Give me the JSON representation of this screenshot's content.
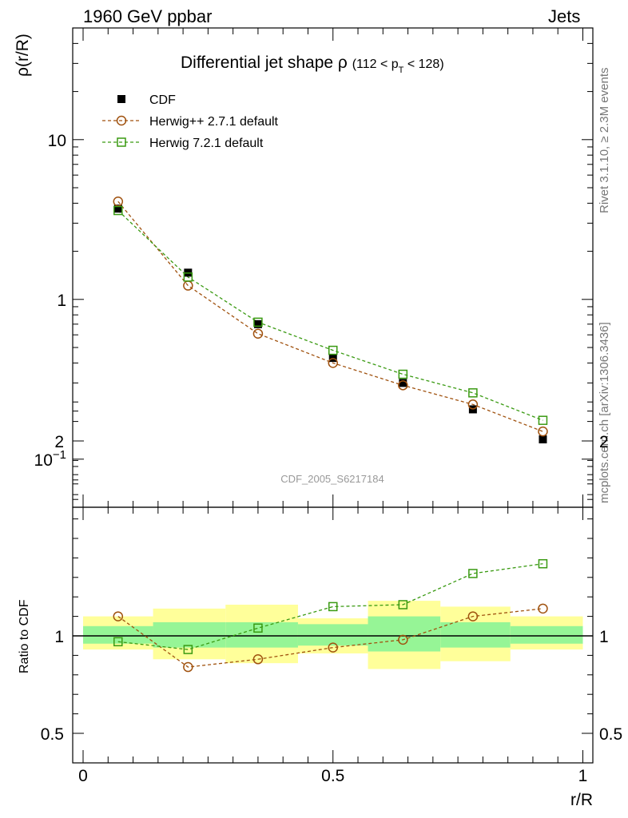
{
  "header": {
    "left": "1960 GeV ppbar",
    "right": "Jets"
  },
  "side_labels": {
    "top": "Rivet 3.1.10, ≥ 2.3M events",
    "bottom": "mcplots.cern.ch [arXiv:1306.3436]"
  },
  "chart_data": [
    {
      "type": "line",
      "panel": "main",
      "title_main": "Differential jet shape ρ",
      "title_sub": "(112 < p",
      "title_sub_index": "T",
      "title_sub_end": " < 128)",
      "ylabel": "ρ(r/R)",
      "xlabel": "",
      "y_scale": "log",
      "ylim": [
        0.05,
        50
      ],
      "xlim": [
        -0.02,
        1.0
      ],
      "ytick_labels": [
        "10^-1",
        "1",
        "10"
      ],
      "watermark": "CDF_2005_S6217184",
      "x": [
        0.07,
        0.21,
        0.35,
        0.5,
        0.64,
        0.78,
        0.92
      ],
      "series": [
        {
          "name": "CDF",
          "marker": "filled-square",
          "color": "#000000",
          "values": [
            3.7,
            1.47,
            0.7,
            0.43,
            0.3,
            0.205,
            0.133
          ]
        },
        {
          "name": "Herwig++ 2.7.1 default",
          "marker": "open-circle",
          "color": "#a0520f",
          "values": [
            4.1,
            1.22,
            0.61,
            0.4,
            0.29,
            0.22,
            0.149
          ]
        },
        {
          "name": "Herwig 7.2.1 default",
          "marker": "open-square",
          "color": "#3a9a12",
          "values": [
            3.6,
            1.38,
            0.72,
            0.48,
            0.34,
            0.26,
            0.175
          ]
        }
      ],
      "legend": "top-left"
    },
    {
      "type": "line",
      "panel": "ratio",
      "ylabel": "Ratio to CDF",
      "xlabel": "r/R",
      "ylim": [
        0.4,
        2.4
      ],
      "ytick_labels": [
        "0.5",
        "1",
        "2"
      ],
      "xtick_labels": [
        "0",
        "0.5",
        "1"
      ],
      "x": [
        0.07,
        0.21,
        0.35,
        0.5,
        0.64,
        0.78,
        0.92
      ],
      "bins": [
        0.0,
        0.14,
        0.285,
        0.43,
        0.57,
        0.715,
        0.855,
        1.0
      ],
      "band_yellow": [
        [
          0.93,
          1.1
        ],
        [
          0.88,
          1.14
        ],
        [
          0.86,
          1.16
        ],
        [
          0.91,
          1.09
        ],
        [
          0.83,
          1.18
        ],
        [
          0.87,
          1.15
        ],
        [
          0.93,
          1.1
        ]
      ],
      "band_green": [
        [
          0.96,
          1.05
        ],
        [
          0.94,
          1.07
        ],
        [
          0.94,
          1.07
        ],
        [
          0.95,
          1.06
        ],
        [
          0.92,
          1.1
        ],
        [
          0.94,
          1.07
        ],
        [
          0.96,
          1.05
        ]
      ],
      "series": [
        {
          "name": "Herwig++ 2.7.1 default",
          "marker": "open-circle",
          "color": "#a0520f",
          "values": [
            1.1,
            0.84,
            0.88,
            0.94,
            0.98,
            1.1,
            1.14
          ]
        },
        {
          "name": "Herwig 7.2.1 default",
          "marker": "open-square",
          "color": "#3a9a12",
          "values": [
            0.97,
            0.93,
            1.04,
            1.15,
            1.16,
            1.32,
            1.37
          ]
        }
      ],
      "reference_line": 1
    }
  ]
}
